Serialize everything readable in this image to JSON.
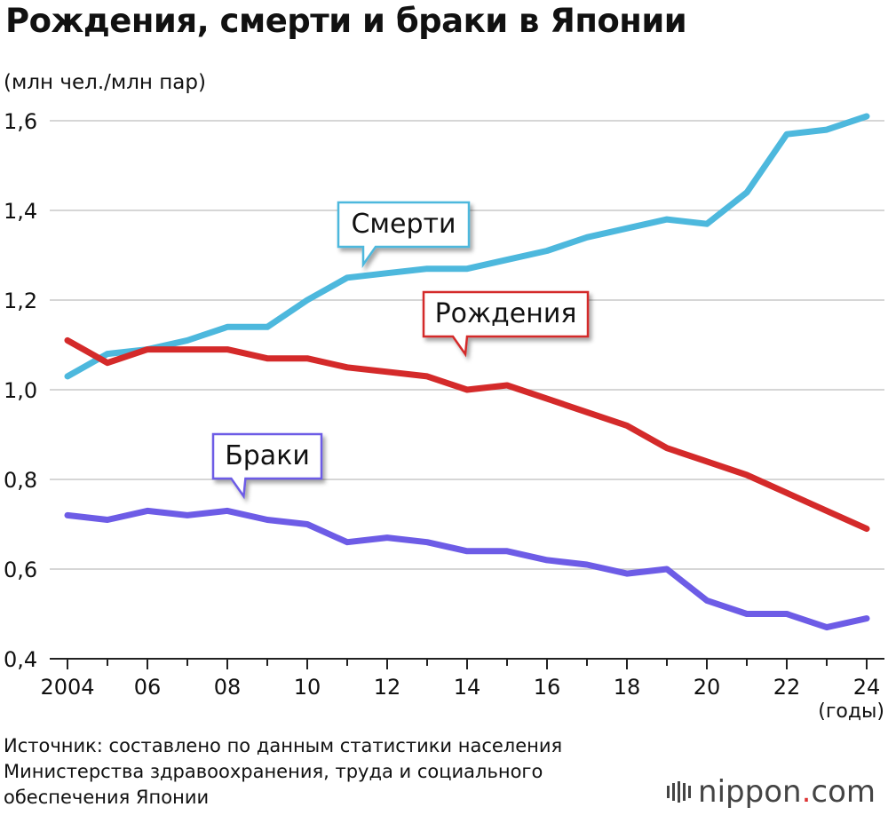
{
  "title": "Рождения, смерти и браки в Японии",
  "unit_label": "(млн чел./млн пар)",
  "source": {
    "lines": [
      "Источник: составлено по данным статистики населения",
      "Министерства здравоохранения, труда и социального",
      "обеспечения Японии"
    ]
  },
  "brand": {
    "name": "nippon",
    "dot": ".",
    "tld": "com"
  },
  "chart_data": {
    "type": "line",
    "title": "Рождения, смерти и браки в Японии",
    "ylabel": "(млн чел./млн пар)",
    "xlabel": "(годы)",
    "ylim": [
      0.4,
      1.6
    ],
    "grid": true,
    "x": [
      2004,
      2005,
      2006,
      2007,
      2008,
      2009,
      2010,
      2011,
      2012,
      2013,
      2014,
      2015,
      2016,
      2017,
      2018,
      2019,
      2020,
      2021,
      2022,
      2023,
      2024
    ],
    "x_tick_values": [
      2004,
      2006,
      2008,
      2010,
      2012,
      2014,
      2016,
      2018,
      2020,
      2022,
      2024
    ],
    "x_tick_labels": [
      "2004",
      "06",
      "08",
      "10",
      "12",
      "14",
      "16",
      "18",
      "20",
      "22",
      "24"
    ],
    "y_ticks": [
      0.4,
      0.6,
      0.8,
      1.0,
      1.2,
      1.4,
      1.6
    ],
    "y_tick_labels": [
      "0,4",
      "0,6",
      "0,8",
      "1,0",
      "1,2",
      "1,4",
      "1,6"
    ],
    "series": [
      {
        "name": "Смерти",
        "color": "#4db8dd",
        "values": [
          1.03,
          1.08,
          1.09,
          1.11,
          1.14,
          1.14,
          1.2,
          1.25,
          1.26,
          1.27,
          1.27,
          1.29,
          1.31,
          1.34,
          1.36,
          1.38,
          1.37,
          1.44,
          1.57,
          1.58,
          1.61
        ]
      },
      {
        "name": "Рождения",
        "color": "#d42a2a",
        "values": [
          1.11,
          1.06,
          1.09,
          1.09,
          1.09,
          1.07,
          1.07,
          1.05,
          1.04,
          1.03,
          1.0,
          1.01,
          0.98,
          0.95,
          0.92,
          0.87,
          0.84,
          0.81,
          0.77,
          0.73,
          0.69
        ]
      },
      {
        "name": "Браки",
        "color": "#6d5ce6",
        "values": [
          0.72,
          0.71,
          0.73,
          0.72,
          0.73,
          0.71,
          0.7,
          0.66,
          0.67,
          0.66,
          0.64,
          0.64,
          0.62,
          0.61,
          0.59,
          0.6,
          0.53,
          0.5,
          0.5,
          0.47,
          0.49
        ]
      }
    ],
    "callouts": [
      {
        "series": "Смерти",
        "label": "Смерти",
        "point_year": 2011
      },
      {
        "series": "Рождения",
        "label": "Рождения",
        "point_year": 2014
      },
      {
        "series": "Браки",
        "label": "Браки",
        "point_year": 2008
      }
    ]
  }
}
